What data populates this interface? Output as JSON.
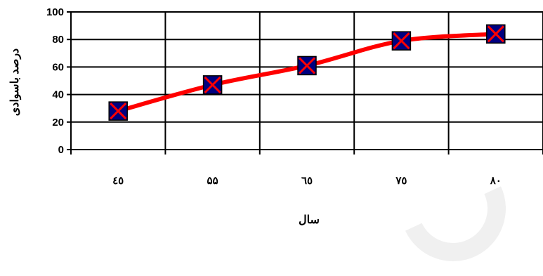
{
  "chart_data": {
    "type": "line",
    "categories": [
      "٤٥",
      "۵۵",
      "٦٥",
      "٧٥",
      "٨٠"
    ],
    "series": [
      {
        "values": [
          28,
          47,
          61,
          79,
          84
        ]
      }
    ],
    "xlabel": "سال",
    "ylabel": "درصد باسوادی",
    "ylim": [
      0,
      100
    ],
    "yticks": [
      0,
      20,
      40,
      60,
      80,
      100
    ],
    "grid": true,
    "legend": "none",
    "line_color": "#ff0000",
    "marker": "x-square",
    "marker_fill": "#000080",
    "marker_cross_color": "#ff0000"
  }
}
